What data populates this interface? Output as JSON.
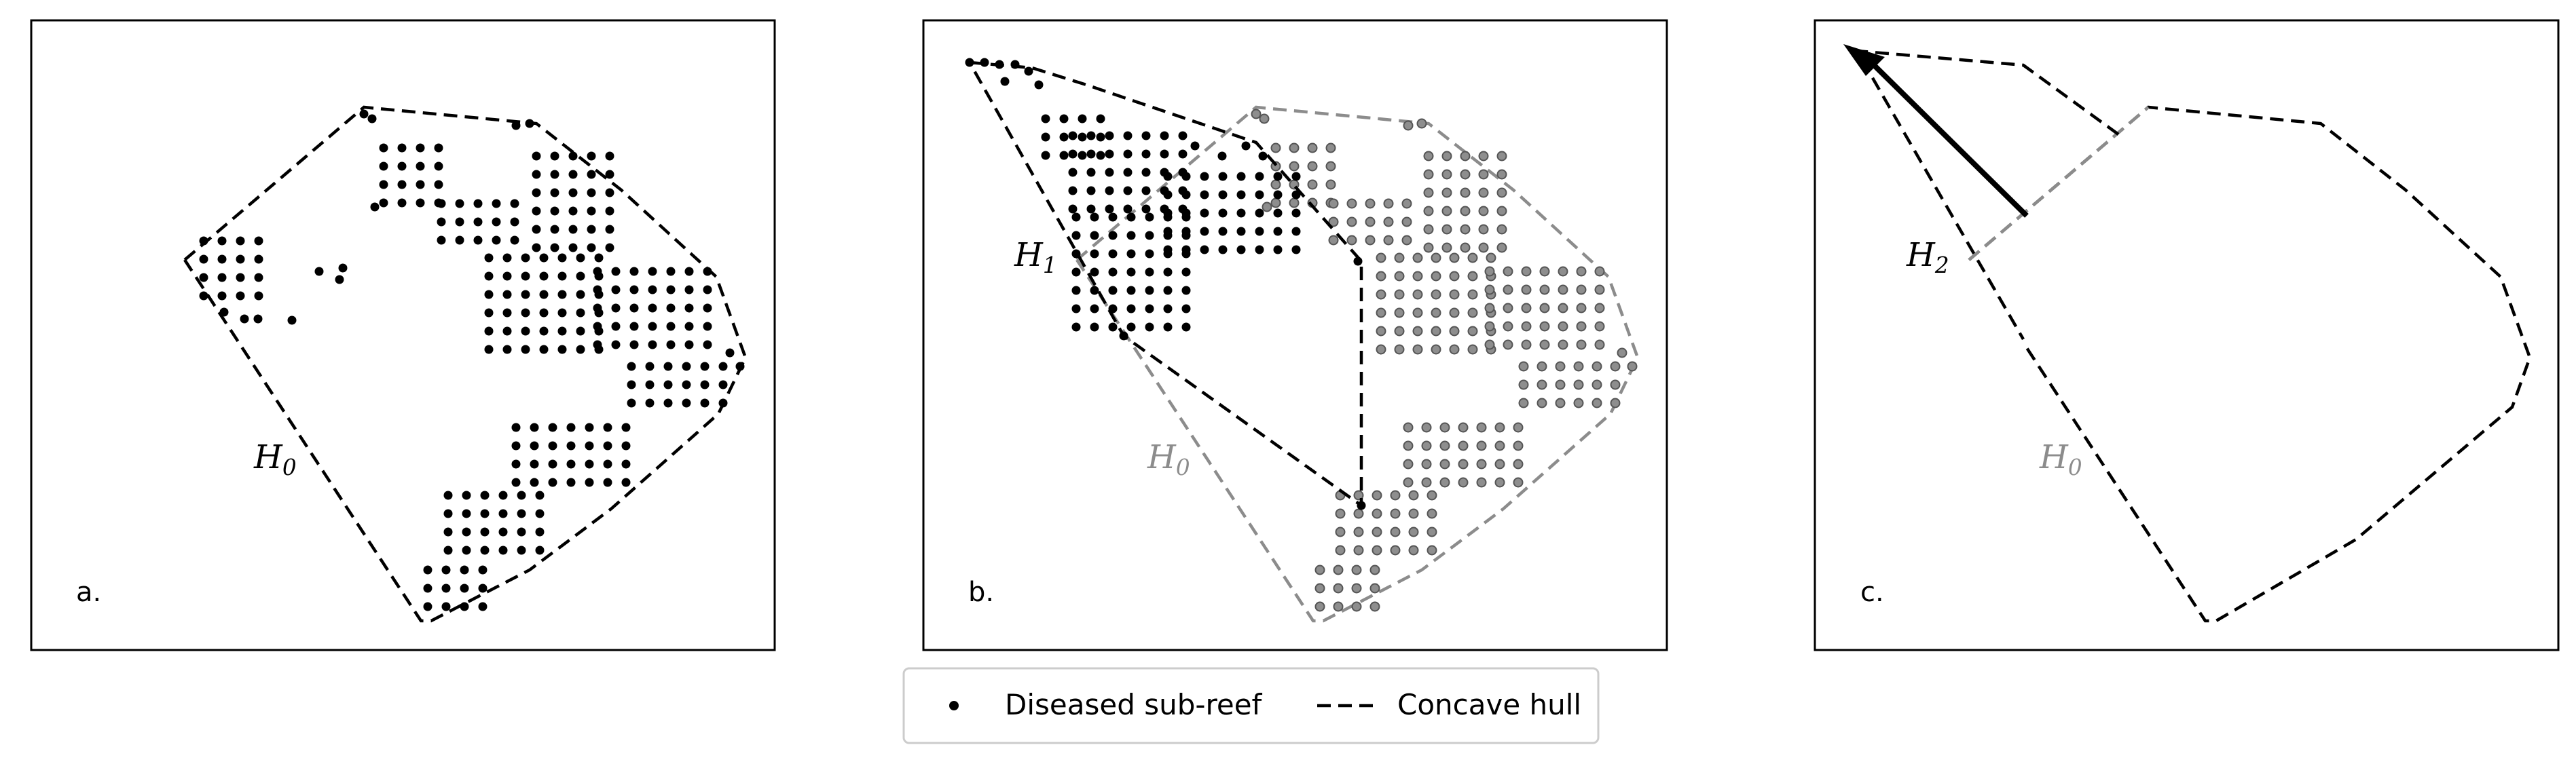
{
  "panels": [
    {
      "tag": "a.",
      "labels": [
        {
          "name": "H",
          "sub": "0"
        }
      ]
    },
    {
      "tag": "b.",
      "labels": [
        {
          "name": "H",
          "sub": "1"
        },
        {
          "name": "H",
          "sub": "0"
        }
      ]
    },
    {
      "tag": "c.",
      "labels": [
        {
          "name": "H",
          "sub": "2"
        },
        {
          "name": "H",
          "sub": "0"
        }
      ]
    }
  ],
  "legend": {
    "point_label": "Diseased sub-reef",
    "line_label": "Concave hull"
  },
  "colors": {
    "primary": "#000000",
    "secondary": "#8c8c8c",
    "faded_points": "#6e6e6e"
  }
}
